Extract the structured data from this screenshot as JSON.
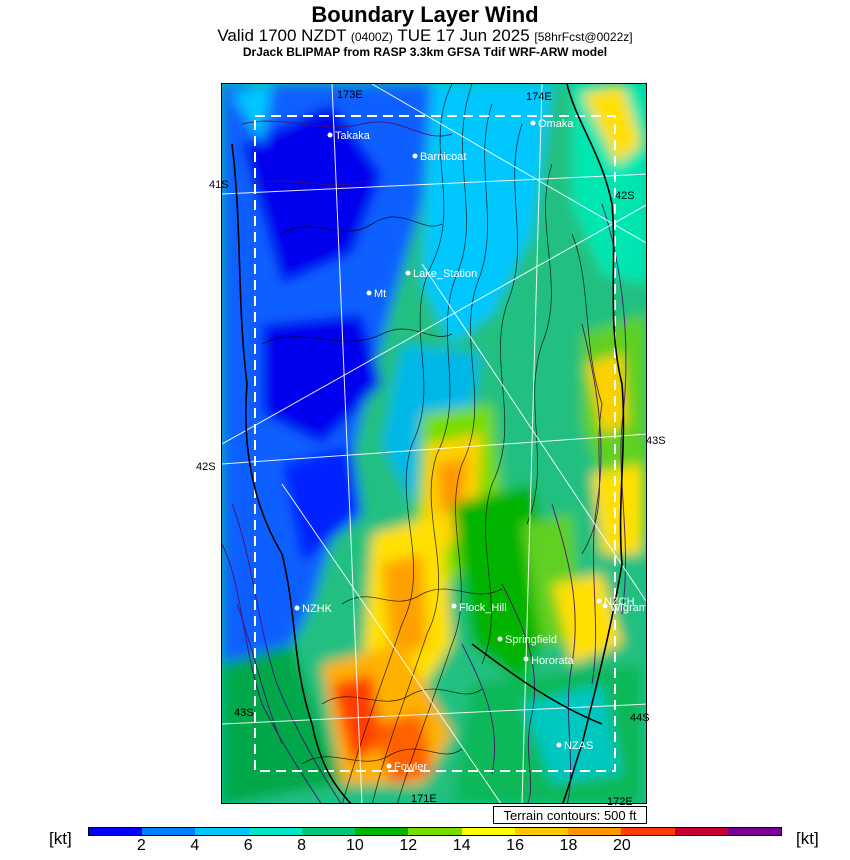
{
  "header": {
    "title": "Boundary Layer Wind",
    "valid_prefix": "Valid 1700 NZDT ",
    "utc": "(0400Z)",
    "date": " TUE 17 Jun 2025 ",
    "forecast": "[58hrFcst@0022z]",
    "model": "DrJack BLIPMAP from RASP 3.3km GFSA Tdif WRF-ARW model"
  },
  "map": {
    "graticule": [
      "173E",
      "174E",
      "41S",
      "42S",
      "42S",
      "43S",
      "43S",
      "44S",
      "171E",
      "172E"
    ],
    "places": [
      "Takaka",
      "Barnicoat",
      "Omaka",
      "Lake_Station",
      "Mt",
      "NZHK",
      "Flock_Hill",
      "NZCH",
      "Wigram",
      "Springfield",
      "Hororata",
      "NZAS",
      "Fowler"
    ],
    "terrain_note": "Terrain contours: 500 ft"
  },
  "colorbar": {
    "unit": "[kt]",
    "ticks": [
      "2",
      "4",
      "6",
      "8",
      "10",
      "12",
      "14",
      "16",
      "18",
      "20"
    ],
    "colors": [
      "#0000ff",
      "#0080ff",
      "#00c8ff",
      "#00e6c8",
      "#00c878",
      "#00b400",
      "#78dc00",
      "#ffff00",
      "#ffc800",
      "#ff9600",
      "#ff3c00",
      "#c80032",
      "#780096"
    ]
  }
}
